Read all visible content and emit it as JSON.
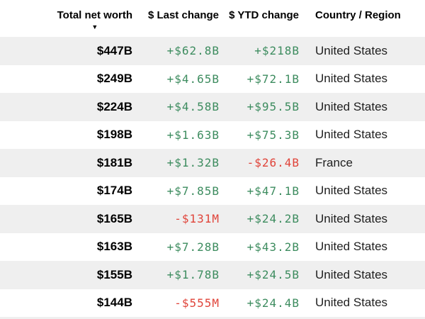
{
  "table": {
    "columns": [
      {
        "label": "Total net worth",
        "sorted": "desc"
      },
      {
        "label": "$ Last change"
      },
      {
        "label": "$ YTD change"
      },
      {
        "label": "Country / Region"
      }
    ],
    "sort_desc_icon": "▼",
    "rows": [
      {
        "total_net_worth": "$447B",
        "last_change": "+$62.8B",
        "ytd_change": "+$218B",
        "country": "United States"
      },
      {
        "total_net_worth": "$249B",
        "last_change": "+$4.65B",
        "ytd_change": "+$72.1B",
        "country": "United States"
      },
      {
        "total_net_worth": "$224B",
        "last_change": "+$4.58B",
        "ytd_change": "+$95.5B",
        "country": "United States"
      },
      {
        "total_net_worth": "$198B",
        "last_change": "+$1.63B",
        "ytd_change": "+$75.3B",
        "country": "United States"
      },
      {
        "total_net_worth": "$181B",
        "last_change": "+$1.32B",
        "ytd_change": "-$26.4B",
        "country": "France"
      },
      {
        "total_net_worth": "$174B",
        "last_change": "+$7.85B",
        "ytd_change": "+$47.1B",
        "country": "United States"
      },
      {
        "total_net_worth": "$165B",
        "last_change": "-$131M",
        "ytd_change": "+$24.2B",
        "country": "United States"
      },
      {
        "total_net_worth": "$163B",
        "last_change": "+$7.28B",
        "ytd_change": "+$43.2B",
        "country": "United States"
      },
      {
        "total_net_worth": "$155B",
        "last_change": "+$1.78B",
        "ytd_change": "+$24.5B",
        "country": "United States"
      },
      {
        "total_net_worth": "$144B",
        "last_change": "-$555M",
        "ytd_change": "+$24.4B",
        "country": "United States"
      }
    ],
    "colors": {
      "positive": "#3d8c5f",
      "negative": "#e0443a",
      "row_alt": "#efefef",
      "header_text": "#000000"
    }
  }
}
